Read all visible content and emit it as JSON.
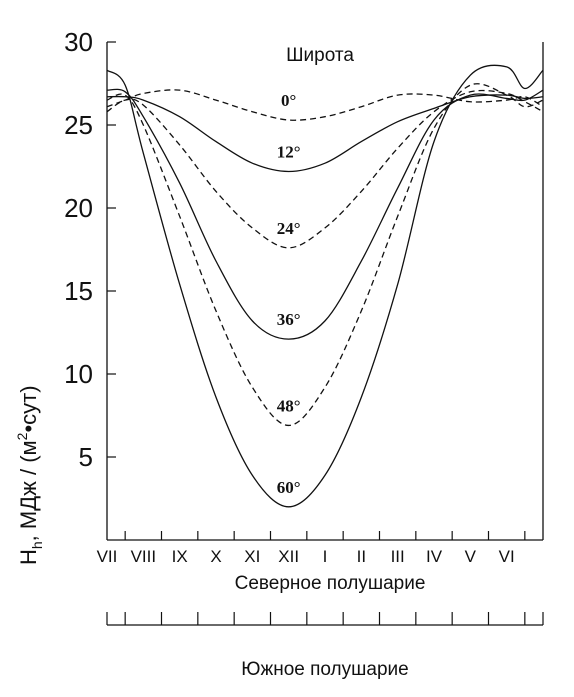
{
  "chart_data": {
    "type": "line",
    "ylabel": {
      "main": "H",
      "sub": "h",
      "units_pre": ",  МДж / (м",
      "units_sup": "2",
      "units_post": "•сут)"
    },
    "legend_title": "Широта",
    "ylim": [
      0,
      30
    ],
    "yticks": [
      "30",
      "25",
      "20",
      "15",
      "10",
      "5"
    ],
    "ytick_values": [
      30,
      25,
      20,
      15,
      10,
      5
    ],
    "x_north_label": "Северное полушарие",
    "x_south_label": "Южное полушарие",
    "x_months_north": [
      "VII",
      "VIII",
      "IX",
      "X",
      "XI",
      "XII",
      "I",
      "II",
      "III",
      "IV",
      "V",
      "VI"
    ],
    "x": [
      0,
      0.5,
      1,
      2,
      3,
      4,
      5,
      6,
      7,
      8,
      9,
      10,
      11,
      11.5,
      12
    ],
    "series": [
      {
        "label": "0°",
        "style": "dashed",
        "values": [
          26.1,
          26.5,
          26.9,
          27.1,
          26.5,
          25.8,
          25.3,
          25.5,
          26.1,
          26.8,
          26.8,
          26.4,
          26.5,
          26.7,
          26.1
        ]
      },
      {
        "label": "12°",
        "style": "solid",
        "values": [
          26.7,
          26.7,
          26.5,
          25.5,
          24.0,
          22.7,
          22.2,
          22.7,
          24.0,
          25.2,
          26.0,
          26.7,
          26.8,
          26.6,
          26.7
        ]
      },
      {
        "label": "24°",
        "style": "dashed",
        "values": [
          25.8,
          26.5,
          26.2,
          23.8,
          21.0,
          18.8,
          17.6,
          18.8,
          21.0,
          23.6,
          25.8,
          27.0,
          26.9,
          26.4,
          25.8
        ]
      },
      {
        "label": "36°",
        "style": "solid",
        "values": [
          27.1,
          27.0,
          25.5,
          21.5,
          16.8,
          13.2,
          12.1,
          13.2,
          16.8,
          21.2,
          25.3,
          26.8,
          26.6,
          26.5,
          27.1
        ]
      },
      {
        "label": "48°",
        "style": "dashed",
        "values": [
          26.5,
          26.8,
          25.0,
          19.5,
          13.8,
          9.2,
          6.9,
          9.2,
          13.8,
          19.5,
          24.8,
          27.4,
          26.8,
          26.1,
          26.5
        ]
      },
      {
        "label": "60°",
        "style": "solid",
        "values": [
          28.3,
          27.4,
          23.3,
          15.4,
          8.6,
          3.9,
          2.0,
          3.9,
          8.6,
          15.4,
          24.0,
          28.0,
          28.5,
          27.2,
          28.3
        ]
      }
    ],
    "line_color": "#111111",
    "grid": false
  }
}
